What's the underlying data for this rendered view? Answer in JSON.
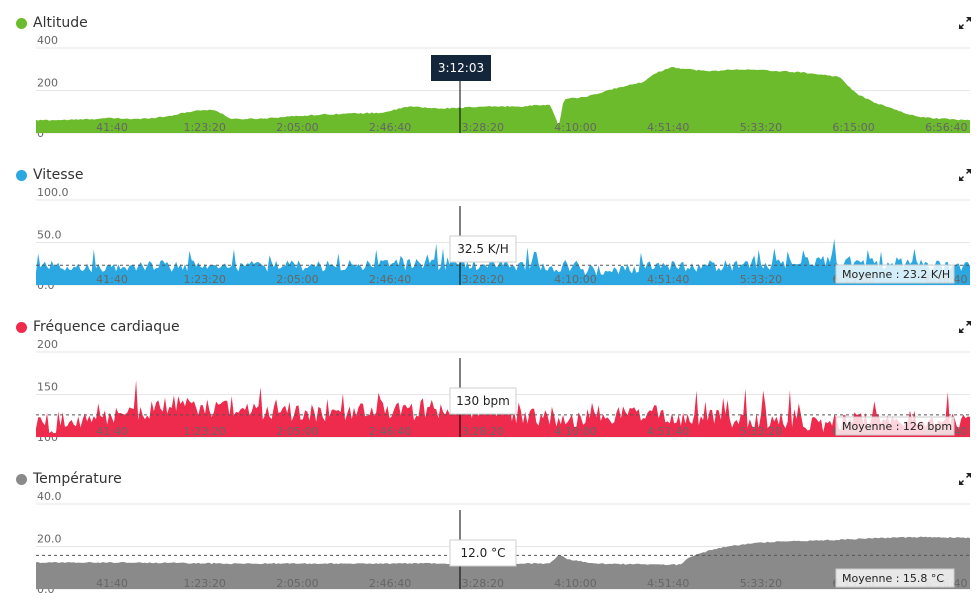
{
  "cursor": {
    "time": "3:12:03"
  },
  "panels": [
    {
      "id": "altitude",
      "title": "Altitude",
      "color": "#6cbb2c",
      "yticks": [
        "400",
        "200",
        "0"
      ],
      "ylim": [
        0,
        400
      ],
      "cursor_label": "3:12:03",
      "cursor_label_style": "dark",
      "average_label": "",
      "average_value": null,
      "profile_keys": [
        [
          0,
          60
        ],
        [
          0.04,
          62
        ],
        [
          0.08,
          70
        ],
        [
          0.11,
          65
        ],
        [
          0.14,
          78
        ],
        [
          0.17,
          105
        ],
        [
          0.19,
          110
        ],
        [
          0.21,
          65
        ],
        [
          0.24,
          68
        ],
        [
          0.28,
          80
        ],
        [
          0.31,
          88
        ],
        [
          0.34,
          92
        ],
        [
          0.37,
          95
        ],
        [
          0.4,
          125
        ],
        [
          0.43,
          115
        ],
        [
          0.46,
          120
        ],
        [
          0.49,
          125
        ],
        [
          0.52,
          125
        ],
        [
          0.55,
          135
        ],
        [
          0.56,
          30
        ],
        [
          0.565,
          160
        ],
        [
          0.59,
          170
        ],
        [
          0.62,
          210
        ],
        [
          0.65,
          240
        ],
        [
          0.66,
          275
        ],
        [
          0.68,
          310
        ],
        [
          0.7,
          300
        ],
        [
          0.72,
          290
        ],
        [
          0.75,
          300
        ],
        [
          0.78,
          295
        ],
        [
          0.8,
          290
        ],
        [
          0.82,
          285
        ],
        [
          0.84,
          275
        ],
        [
          0.86,
          265
        ],
        [
          0.87,
          220
        ],
        [
          0.88,
          180
        ],
        [
          0.9,
          140
        ],
        [
          0.92,
          110
        ],
        [
          0.94,
          80
        ],
        [
          0.96,
          70
        ],
        [
          0.98,
          65
        ],
        [
          1.0,
          60
        ]
      ],
      "noise": 6
    },
    {
      "id": "vitesse",
      "title": "Vitesse",
      "color": "#2ba8e1",
      "yticks": [
        "100.0",
        "50.0",
        "0.0"
      ],
      "ylim": [
        0,
        100
      ],
      "cursor_label": "32.5 K/H",
      "cursor_label_style": "light",
      "average_label": "Moyenne : 23.2 K/H",
      "average_value": 23.2,
      "profile_keys": [
        [
          0,
          20
        ],
        [
          0.1,
          22
        ],
        [
          0.2,
          23
        ],
        [
          0.3,
          22
        ],
        [
          0.4,
          24
        ],
        [
          0.5,
          24
        ],
        [
          0.55,
          20
        ],
        [
          0.6,
          18
        ],
        [
          0.7,
          22
        ],
        [
          0.8,
          24
        ],
        [
          0.85,
          30
        ],
        [
          0.9,
          24
        ],
        [
          1.0,
          22
        ]
      ],
      "noise": 14
    },
    {
      "id": "frequence",
      "title": "Fréquence cardiaque",
      "color": "#ee2a4d",
      "yticks": [
        "200",
        "150",
        "100"
      ],
      "ylim": [
        100,
        200
      ],
      "cursor_label": "130 bpm",
      "cursor_label_style": "light",
      "average_label": "Moyenne : 126 bpm",
      "average_value": 126,
      "profile_keys": [
        [
          0,
          112
        ],
        [
          0.05,
          118
        ],
        [
          0.1,
          128
        ],
        [
          0.15,
          138
        ],
        [
          0.2,
          132
        ],
        [
          0.3,
          128
        ],
        [
          0.4,
          130
        ],
        [
          0.45,
          132
        ],
        [
          0.5,
          130
        ],
        [
          0.56,
          118
        ],
        [
          0.6,
          124
        ],
        [
          0.65,
          128
        ],
        [
          0.7,
          122
        ],
        [
          0.8,
          120
        ],
        [
          0.85,
          116
        ],
        [
          0.9,
          122
        ],
        [
          1.0,
          118
        ]
      ],
      "noise": 22
    },
    {
      "id": "temperature",
      "title": "Température",
      "color": "#8a8a8a",
      "yticks": [
        "40.0",
        "20.0",
        "0.0"
      ],
      "ylim": [
        0,
        40
      ],
      "cursor_label": "12.0 °C",
      "cursor_label_style": "light",
      "average_label": "Moyenne : 15.8 °C",
      "average_value": 15.8,
      "profile_keys": [
        [
          0,
          12.5
        ],
        [
          0.1,
          12.5
        ],
        [
          0.2,
          12
        ],
        [
          0.3,
          12
        ],
        [
          0.4,
          12
        ],
        [
          0.5,
          12
        ],
        [
          0.55,
          12
        ],
        [
          0.56,
          16
        ],
        [
          0.57,
          14
        ],
        [
          0.6,
          12
        ],
        [
          0.66,
          11.5
        ],
        [
          0.69,
          11.5
        ],
        [
          0.7,
          15
        ],
        [
          0.72,
          18
        ],
        [
          0.74,
          20
        ],
        [
          0.76,
          21
        ],
        [
          0.78,
          22
        ],
        [
          0.8,
          22.5
        ],
        [
          0.85,
          23
        ],
        [
          0.9,
          24
        ],
        [
          0.95,
          24.5
        ],
        [
          1.0,
          24
        ]
      ],
      "noise": 0.6
    }
  ],
  "xticks": [
    "41:40",
    "1:23:20",
    "2:05:00",
    "2:46:40",
    "3:28:20",
    "4:10:00",
    "4:51:40",
    "5:33:20",
    "6:15:00",
    "6:56:40"
  ]
}
